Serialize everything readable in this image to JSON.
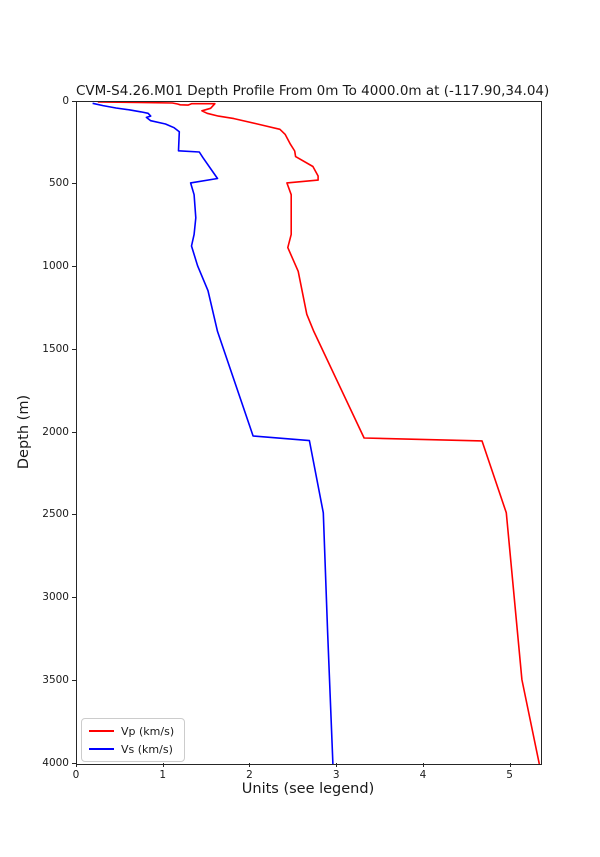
{
  "title": "CVM-S4.26.M01 Depth Profile From 0m To 4000.0m at (-117.90,34.04)",
  "chart_data": {
    "type": "line",
    "title": "CVM-S4.26.M01 Depth Profile From 0m To 4000.0m at (-117.90,34.04)",
    "xlabel": "Units (see legend)",
    "ylabel": "Depth (m)",
    "xlim": [
      0,
      5.35
    ],
    "ylim": [
      0,
      4000
    ],
    "y_axis_inverted_depth_down": true,
    "grid": false,
    "legend_position": "lower left",
    "x_ticks": [
      0,
      1,
      2,
      3,
      4,
      5
    ],
    "y_ticks": [
      0,
      500,
      1000,
      1500,
      2000,
      2500,
      3000,
      3500,
      4000
    ],
    "series": [
      {
        "name": "Vp (km/s)",
        "color": "#ff0000",
        "points_velocity_depth": [
          [
            0.24,
            0
          ],
          [
            0.7,
            3
          ],
          [
            1.1,
            6
          ],
          [
            1.16,
            12
          ],
          [
            1.19,
            17
          ],
          [
            1.28,
            19
          ],
          [
            1.32,
            10
          ],
          [
            1.59,
            10
          ],
          [
            1.54,
            38
          ],
          [
            1.44,
            53
          ],
          [
            1.5,
            68
          ],
          [
            1.63,
            85
          ],
          [
            1.81,
            100
          ],
          [
            2.08,
            133
          ],
          [
            2.34,
            165
          ],
          [
            2.4,
            195
          ],
          [
            2.46,
            255
          ],
          [
            2.51,
            296
          ],
          [
            2.52,
            330
          ],
          [
            2.72,
            390
          ],
          [
            2.78,
            447
          ],
          [
            2.78,
            472
          ],
          [
            2.42,
            489
          ],
          [
            2.47,
            560
          ],
          [
            2.47,
            800
          ],
          [
            2.43,
            880
          ],
          [
            2.55,
            1023
          ],
          [
            2.65,
            1283
          ],
          [
            2.73,
            1386
          ],
          [
            3.31,
            2030
          ],
          [
            4.67,
            2048
          ],
          [
            4.95,
            2482
          ],
          [
            5.13,
            3490
          ],
          [
            5.33,
            4000
          ]
        ]
      },
      {
        "name": "Vs (km/s)",
        "color": "#0000ff",
        "points_velocity_depth": [
          [
            0.18,
            8
          ],
          [
            0.3,
            22
          ],
          [
            0.45,
            36
          ],
          [
            0.61,
            48
          ],
          [
            0.74,
            60
          ],
          [
            0.82,
            68
          ],
          [
            0.85,
            85
          ],
          [
            0.8,
            93
          ],
          [
            0.85,
            113
          ],
          [
            1.02,
            133
          ],
          [
            1.12,
            155
          ],
          [
            1.18,
            180
          ],
          [
            1.17,
            295
          ],
          [
            1.41,
            302
          ],
          [
            1.45,
            335
          ],
          [
            1.62,
            462
          ],
          [
            1.31,
            489
          ],
          [
            1.35,
            560
          ],
          [
            1.37,
            700
          ],
          [
            1.35,
            800
          ],
          [
            1.32,
            870
          ],
          [
            1.39,
            990
          ],
          [
            1.51,
            1140
          ],
          [
            1.62,
            1386
          ],
          [
            2.03,
            2018
          ],
          [
            2.68,
            2046
          ],
          [
            2.84,
            2482
          ],
          [
            2.89,
            3200
          ],
          [
            2.95,
            4000
          ]
        ]
      }
    ]
  }
}
